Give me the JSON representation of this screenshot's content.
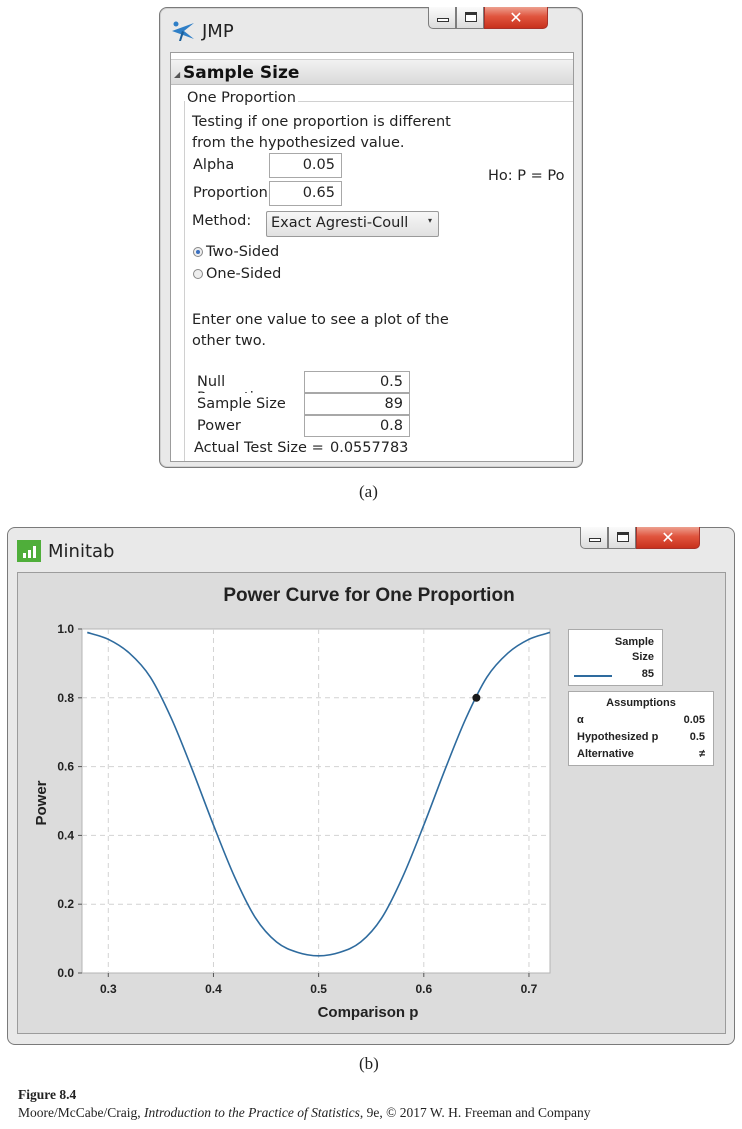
{
  "jmp": {
    "window_title": "JMP",
    "section_title": "Sample Size",
    "group_title": "One Proportion",
    "description_line1": "Testing if one proportion is different",
    "description_line2": "from the hypothesized value.",
    "alpha_label": "Alpha",
    "alpha_value": "0.05",
    "proportion_label": "Proportion",
    "proportion_value": "0.65",
    "hypothesis": "Ho: P = Po",
    "method_label": "Method:",
    "method_value": "Exact Agresti-Coull",
    "radio_options": [
      {
        "label": "Two-Sided",
        "selected": true
      },
      {
        "label": "One-Sided",
        "selected": false
      }
    ],
    "instruction_line1": "Enter one value to see a plot of the",
    "instruction_line2": "other two.",
    "table": [
      {
        "label": "Null Proportion",
        "value": "0.5"
      },
      {
        "label": "Sample Size",
        "value": "89"
      },
      {
        "label": "Power",
        "value": "0.8"
      }
    ],
    "actual_test_size_label": "Actual Test Size =",
    "actual_test_size_value": "0.0557783",
    "icons": {
      "app": "jmp-logo-icon",
      "minimize": "minimize-icon",
      "maximize": "maximize-icon",
      "close": "close-icon"
    }
  },
  "caption_a": "(a)",
  "minitab": {
    "window_title": "Minitab",
    "icons": {
      "app": "minitab-logo-icon",
      "minimize": "minimize-icon",
      "maximize": "maximize-icon",
      "close": "close-icon"
    },
    "legend": {
      "header_line1": "Sample",
      "header_line2": "Size",
      "entry": "85",
      "line_color": "#2e6b9e"
    },
    "assumptions": {
      "title": "Assumptions",
      "rows": [
        {
          "label": "α",
          "value": "0.05"
        },
        {
          "label": "Hypothesized p",
          "value": "0.5"
        },
        {
          "label": "Alternative",
          "value": "≠"
        }
      ]
    }
  },
  "chart_data": {
    "type": "line",
    "title": "Power Curve for One Proportion",
    "xlabel": "Comparison p",
    "ylabel": "Power",
    "xlim": [
      0.275,
      0.72
    ],
    "ylim": [
      0.0,
      1.0
    ],
    "xticks": [
      "0.3",
      "0.4",
      "0.5",
      "0.6",
      "0.7"
    ],
    "yticks": [
      "0.0",
      "0.2",
      "0.4",
      "0.6",
      "0.8",
      "1.0"
    ],
    "grid": true,
    "series": [
      {
        "name": "85",
        "color": "#2e6b9e",
        "x": [
          0.28,
          0.3,
          0.32,
          0.34,
          0.36,
          0.38,
          0.4,
          0.42,
          0.44,
          0.46,
          0.48,
          0.5,
          0.52,
          0.54,
          0.56,
          0.58,
          0.6,
          0.62,
          0.64,
          0.66,
          0.68,
          0.7,
          0.72
        ],
        "y": [
          0.99,
          0.97,
          0.93,
          0.86,
          0.74,
          0.59,
          0.43,
          0.28,
          0.16,
          0.09,
          0.06,
          0.05,
          0.06,
          0.09,
          0.16,
          0.28,
          0.43,
          0.59,
          0.74,
          0.86,
          0.93,
          0.97,
          0.99
        ]
      }
    ],
    "marked_point": {
      "x": 0.65,
      "y": 0.8
    }
  },
  "caption_b": "(b)",
  "figure_label": "Figure 8.4",
  "credit_authors": "Moore/McCabe/Craig, ",
  "credit_book": "Introduction to the Practice of Statistics",
  "credit_rest": ", 9e, © 2017 W. H. Freeman and Company"
}
